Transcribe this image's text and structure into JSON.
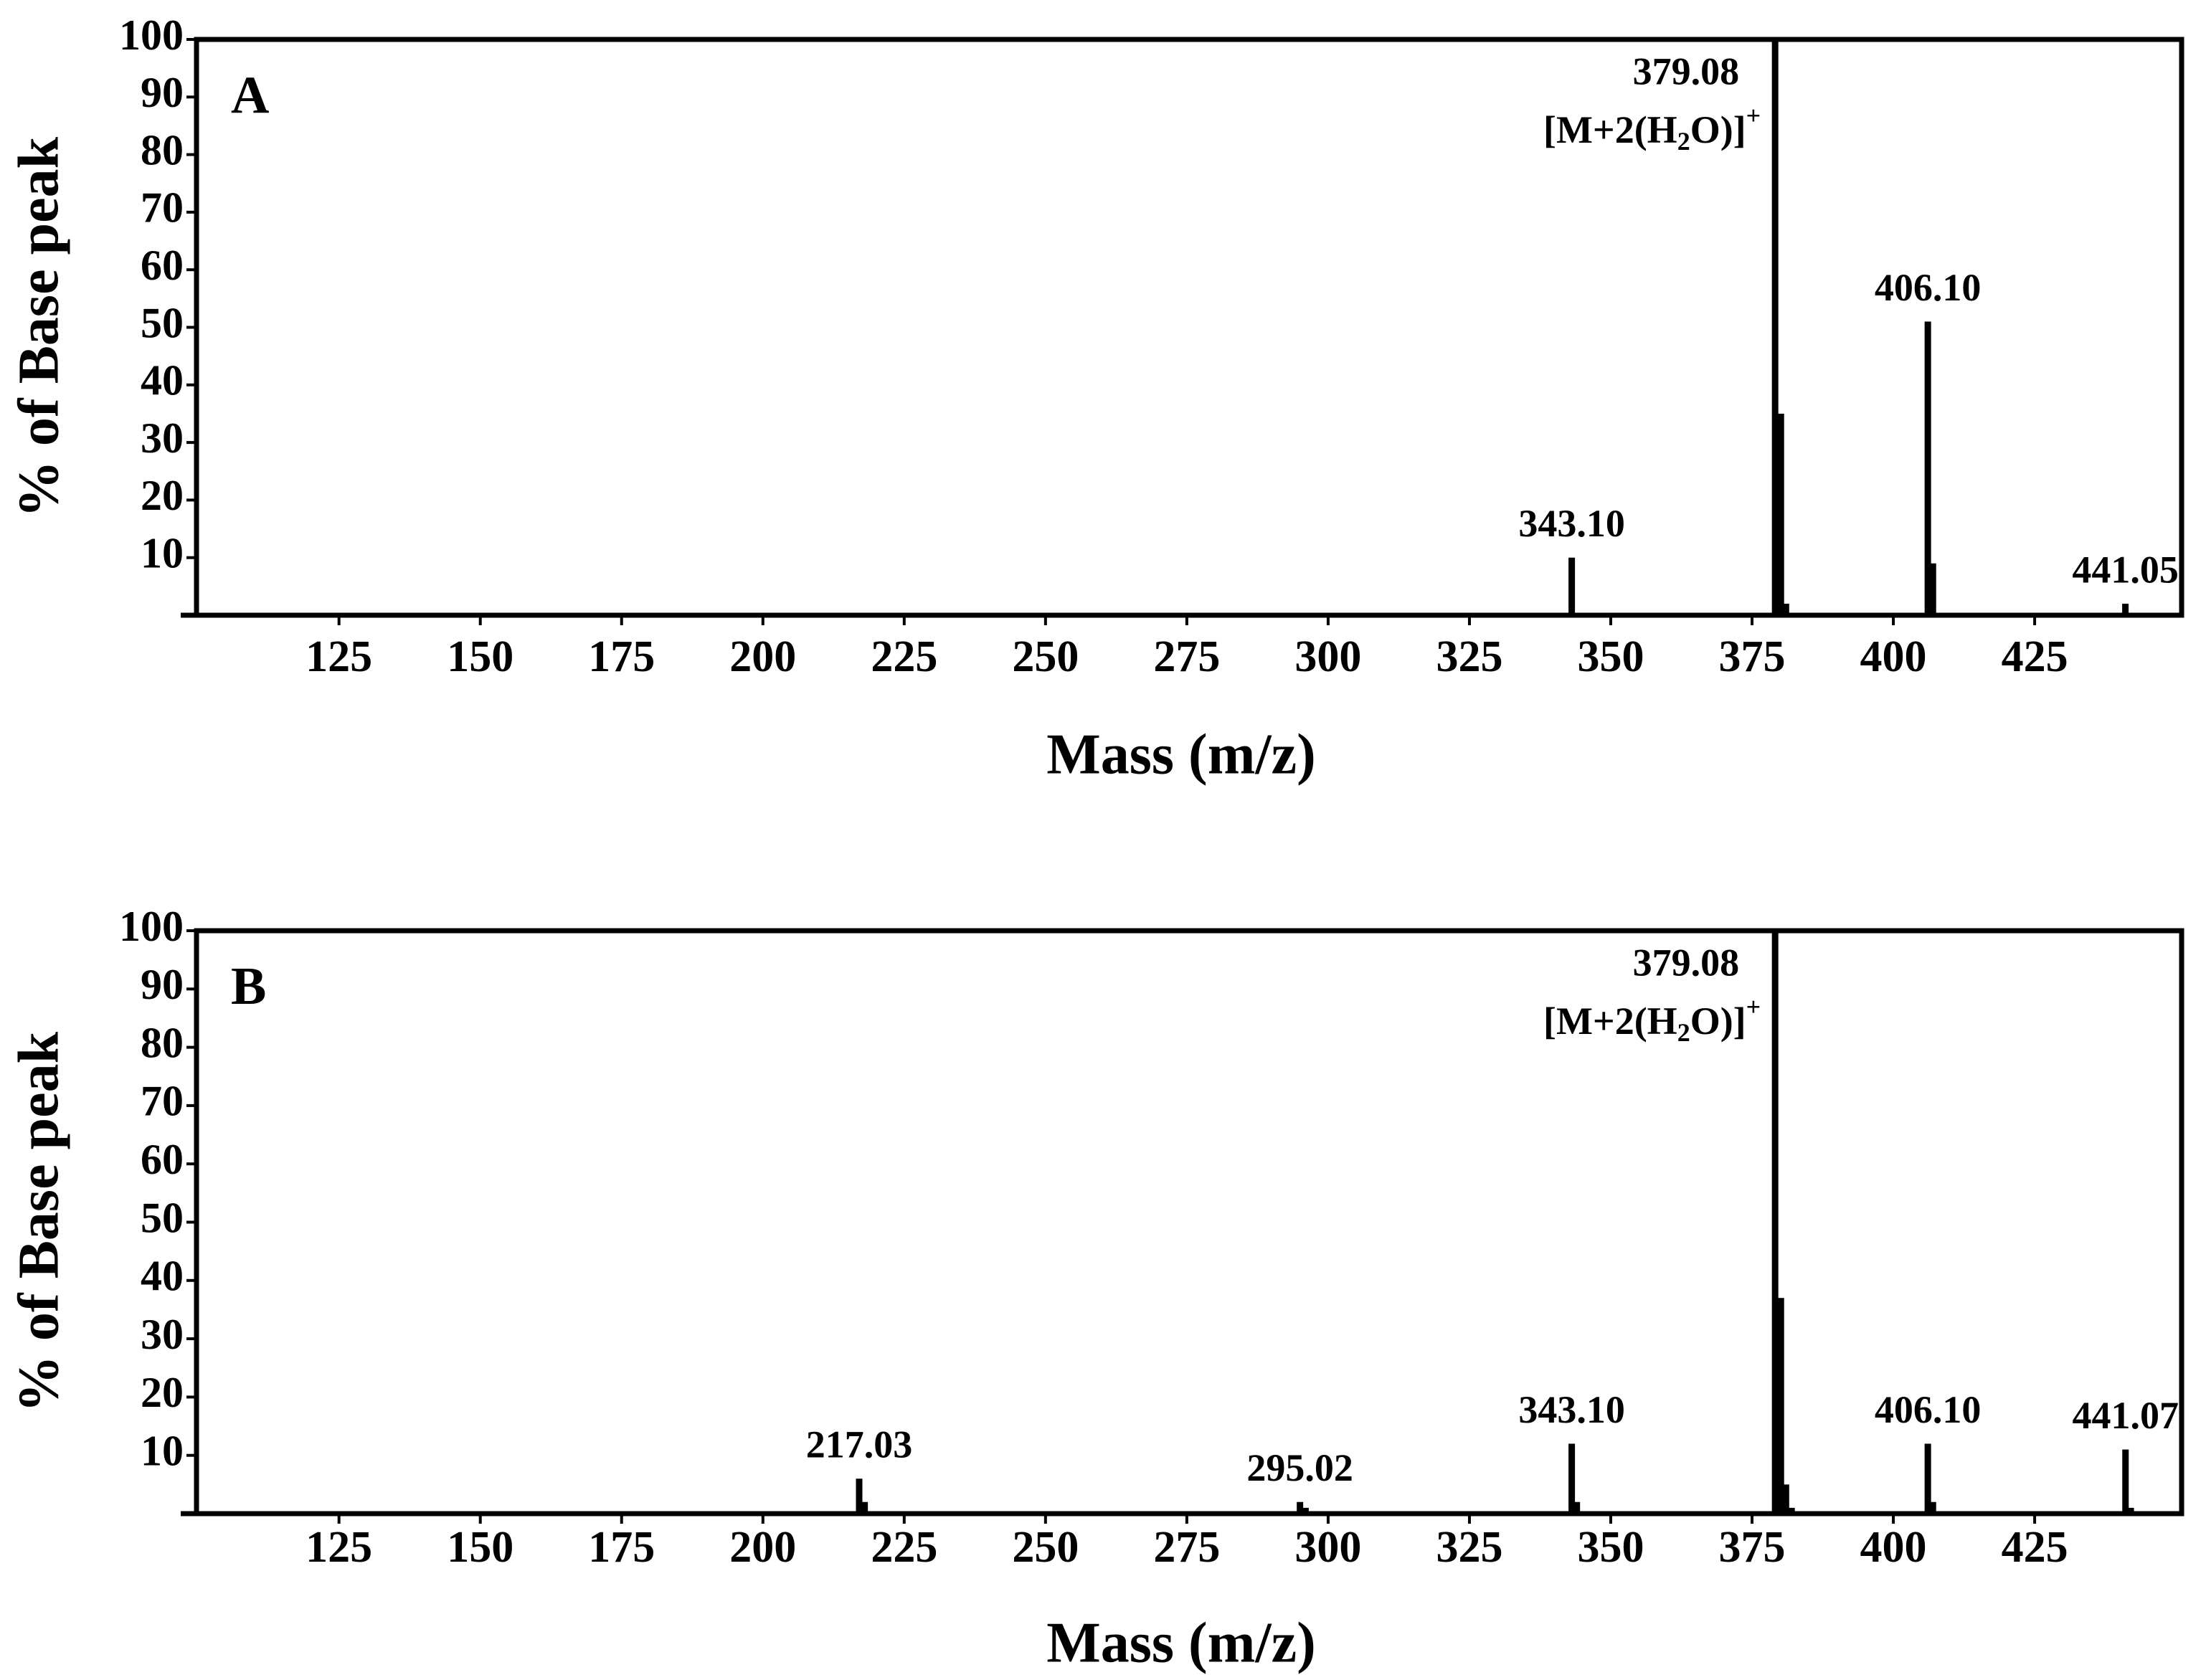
{
  "chart_data": [
    {
      "type": "bar",
      "panel_label": "A",
      "y_label": "% of Base peak",
      "x_label": "Mass (m/z)",
      "color": "#000000",
      "x": [
        343.1,
        379.08,
        379.5,
        380.1,
        381.0,
        406.1,
        407.0,
        441.05
      ],
      "values": [
        10,
        100,
        10,
        35,
        2,
        51,
        9,
        2
      ],
      "peak_labels": [
        "343.10",
        "379.08",
        null,
        null,
        null,
        "406.10",
        null,
        "441.05"
      ],
      "ion_label": [
        "[M+2(H",
        "2",
        "O)]",
        "+"
      ],
      "xlim": [
        97,
        451
      ],
      "ylim": [
        0,
        100
      ],
      "xticks": [
        125,
        150,
        175,
        200,
        225,
        250,
        275,
        300,
        325,
        350,
        375,
        400,
        425
      ],
      "yticks": [
        10,
        20,
        30,
        40,
        50,
        60,
        70,
        80,
        90,
        100
      ]
    },
    {
      "type": "bar",
      "panel_label": "B",
      "y_label": "% of Base peak",
      "x_label": "Mass (m/z)",
      "color": "#000000",
      "x": [
        217.03,
        218.0,
        295.02,
        296.0,
        343.1,
        344.0,
        379.08,
        379.5,
        380.1,
        381.0,
        382.0,
        406.1,
        407.0,
        441.07,
        442.0
      ],
      "values": [
        6,
        2,
        2,
        1,
        12,
        2,
        100,
        14,
        37,
        5,
        1,
        12,
        2,
        11,
        1
      ],
      "peak_labels": [
        "217.03",
        null,
        "295.02",
        null,
        "343.10",
        null,
        "379.08",
        null,
        null,
        null,
        null,
        "406.10",
        null,
        "441.07",
        null
      ],
      "ion_label": [
        "[M+2(H",
        "2",
        "O)]",
        "+"
      ],
      "xlim": [
        97,
        451
      ],
      "ylim": [
        0,
        100
      ],
      "xticks": [
        125,
        150,
        175,
        200,
        225,
        250,
        275,
        300,
        325,
        350,
        375,
        400,
        425
      ],
      "yticks": [
        10,
        20,
        30,
        40,
        50,
        60,
        70,
        80,
        90,
        100
      ]
    }
  ]
}
